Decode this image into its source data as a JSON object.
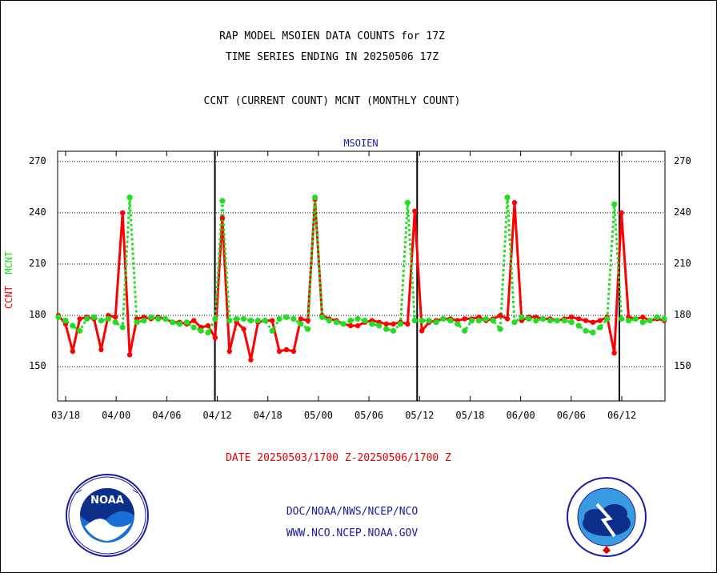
{
  "title_line1": "RAP MODEL MSOIEN DATA COUNTS for 17Z",
  "title_line2": "TIME SERIES ENDING IN 20250506 17Z",
  "title_line3": "CCNT (CURRENT COUNT) MCNT (MONTHLY COUNT)",
  "date_range": "DATE 20250503/1700 Z-20250506/1700 Z",
  "footer_line1": "DOC/NOAA/NWS/NCEP/NCO",
  "footer_line2": "WWW.NCO.NCEP.NOAA.GOV",
  "logos": {
    "left": "NOAA",
    "right": "NATIONAL WEATHER SERVICE"
  },
  "colors": {
    "ccnt": "#ff0000",
    "mcnt": "#22dd22",
    "series_label": "#1a1aa6",
    "footer": "#1a1aa6"
  },
  "chart_data": {
    "type": "line",
    "title": "MSOIEN",
    "ylabel_ccnt": "CCNT",
    "ylabel_mcnt": "MCNT",
    "y_ticks": [
      150,
      180,
      210,
      240,
      270
    ],
    "ylim": [
      130,
      276
    ],
    "x_ticks": [
      "03/18",
      "04/00",
      "04/06",
      "04/12",
      "04/18",
      "05/00",
      "05/06",
      "05/12",
      "05/18",
      "06/00",
      "06/06",
      "06/12"
    ],
    "grid": true,
    "series": [
      {
        "name": "CCNT",
        "values": [
          180,
          175,
          159,
          178,
          179,
          178,
          160,
          180,
          179,
          240,
          157,
          178,
          179,
          178,
          179,
          178,
          176,
          176,
          175,
          177,
          173,
          174,
          167,
          237,
          159,
          176,
          172,
          154,
          176,
          177,
          177,
          159,
          160,
          159,
          178,
          177,
          248,
          180,
          178,
          177,
          175,
          174,
          174,
          176,
          177,
          176,
          175,
          175,
          176,
          175,
          241,
          171,
          176,
          177,
          178,
          178,
          177,
          178,
          178,
          179,
          177,
          178,
          180,
          178,
          246,
          177,
          179,
          179,
          178,
          178,
          177,
          178,
          179,
          178,
          177,
          176,
          177,
          179,
          158,
          240,
          179,
          178,
          179,
          177,
          178,
          177
        ],
        "mcnt_values": [
          179,
          177,
          174,
          171,
          178,
          179,
          177,
          178,
          176,
          173,
          249,
          176,
          177,
          179,
          178,
          178,
          176,
          175,
          176,
          173,
          171,
          170,
          178,
          247,
          177,
          178,
          178,
          177,
          177,
          177,
          171,
          178,
          179,
          178,
          175,
          172,
          249,
          179,
          177,
          176,
          175,
          177,
          178,
          177,
          175,
          174,
          172,
          171,
          175,
          246,
          177,
          177,
          177,
          176,
          178,
          177,
          175,
          171,
          177,
          177,
          178,
          177,
          172,
          249,
          176,
          179,
          178,
          177,
          178,
          177,
          177,
          177,
          176,
          174,
          171,
          170,
          173,
          178,
          245,
          178,
          177,
          178,
          176,
          177,
          179,
          178
        ]
      }
    ]
  }
}
